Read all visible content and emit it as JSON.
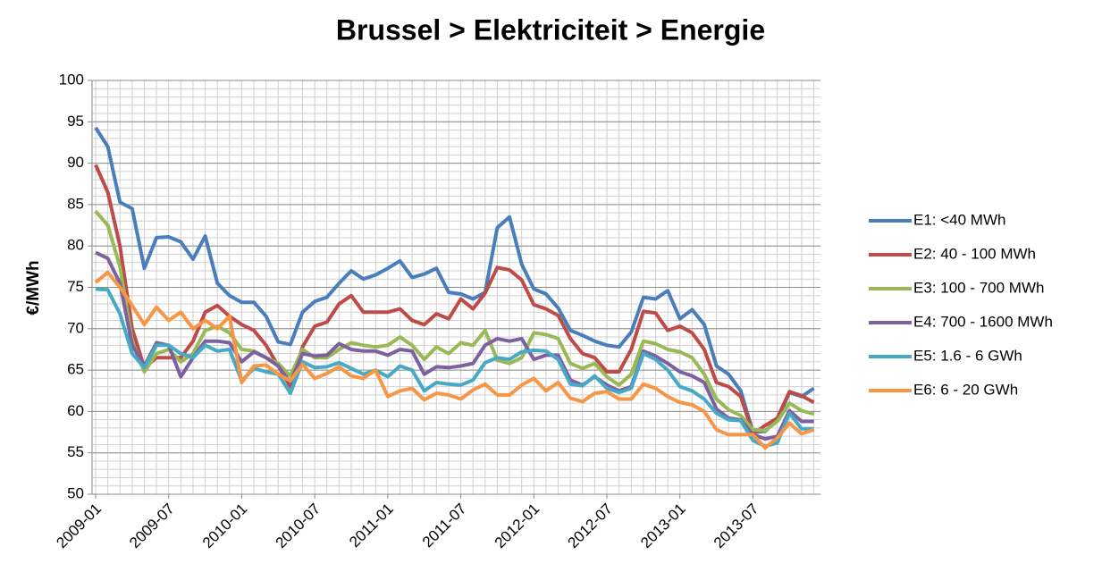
{
  "chart_data": {
    "type": "line",
    "title": "Brussel > Elektriciteit > Energie",
    "y_label": "€/MWh",
    "categories": [
      "2009-01",
      null,
      null,
      null,
      null,
      null,
      "2009-07",
      null,
      null,
      null,
      null,
      null,
      "2010-01",
      null,
      null,
      null,
      null,
      null,
      "2010-07",
      null,
      null,
      null,
      null,
      null,
      "2011-01",
      null,
      null,
      null,
      null,
      null,
      "2011-07",
      null,
      null,
      null,
      null,
      null,
      "2012-01",
      null,
      null,
      null,
      null,
      null,
      "2012-07",
      null,
      null,
      null,
      null,
      null,
      "2013-01",
      null,
      null,
      null,
      null,
      null,
      "2013-07",
      null,
      null,
      null,
      null,
      null
    ],
    "ylim": [
      50,
      100
    ],
    "yticks": [
      50,
      55,
      60,
      65,
      70,
      75,
      80,
      85,
      90,
      95,
      100
    ],
    "grid": true,
    "minor_grid": true,
    "legend": "right",
    "series": [
      {
        "name": "E1: <40 MWh",
        "color": "#4a7ebb",
        "values": [
          94.3,
          92,
          85.3,
          84.5,
          77.3,
          81,
          81.1,
          80.5,
          78.4,
          81.2,
          75.5,
          74,
          73.2,
          73.2,
          71.5,
          68.4,
          68.1,
          72,
          73.3,
          73.8,
          75.5,
          77,
          76,
          76.5,
          77.3,
          78.2,
          76.2,
          76.6,
          77.3,
          74.4,
          74.2,
          73.6,
          74.4,
          82.2,
          83.5,
          77.8,
          74.8,
          74.2,
          72.5,
          69.8,
          69.2,
          68.5,
          68,
          67.8,
          69.6,
          73.8,
          73.6,
          74.6,
          71.2,
          72.3,
          70.5,
          65.5,
          64.5,
          62.5,
          57.5,
          57.6,
          59,
          62.3,
          61.8,
          62.8
        ]
      },
      {
        "name": "E2: 40 - 100 MWh",
        "color": "#be4b48",
        "values": [
          89.8,
          86.5,
          80,
          70,
          65.3,
          66.5,
          66.5,
          66.5,
          68.5,
          72,
          72.8,
          71.5,
          70.5,
          69.8,
          68,
          65.5,
          63,
          67.8,
          70.3,
          70.8,
          73,
          74,
          72,
          72,
          72,
          72.4,
          71,
          70.5,
          71.8,
          71.2,
          73.6,
          72.4,
          74.3,
          77.4,
          77.1,
          75.9,
          72.9,
          72.4,
          71.6,
          68.8,
          67,
          66.5,
          64.8,
          64.8,
          67.5,
          72.1,
          71.9,
          69.8,
          70.3,
          69.5,
          67.5,
          63.5,
          63,
          61.8,
          57.3,
          58.3,
          59.2,
          62.4,
          61.9,
          61.1
        ]
      },
      {
        "name": "E3: 100 - 700 MWh",
        "color": "#98b954",
        "values": [
          84.2,
          82.5,
          77.5,
          68.5,
          64.8,
          67,
          67.5,
          66,
          67,
          69.8,
          70.3,
          69.5,
          67.5,
          67.3,
          66.5,
          65.8,
          64.3,
          67.5,
          66.5,
          66.5,
          67.5,
          68.3,
          68,
          67.8,
          68,
          69,
          68,
          66.3,
          67.8,
          67,
          68.3,
          68,
          69.8,
          66.2,
          65.8,
          66.5,
          69.5,
          69.3,
          68.8,
          65.8,
          65.2,
          65.8,
          64.2,
          63.2,
          64.5,
          68.5,
          68.2,
          67.5,
          67.2,
          66.5,
          64.5,
          61.5,
          60.2,
          59.5,
          57.8,
          57.7,
          58.8,
          61,
          60.1,
          59.7
        ]
      },
      {
        "name": "E4: 700 - 1600 MWh",
        "color": "#7d60a0",
        "values": [
          79.2,
          78.5,
          75.5,
          68,
          65.5,
          68.3,
          68,
          64.2,
          66.5,
          68.5,
          68.5,
          68.3,
          66,
          67.2,
          66.5,
          65.5,
          63.5,
          67,
          66.7,
          66.8,
          68.2,
          67.5,
          67.3,
          67.3,
          66.8,
          67.5,
          67.3,
          64.5,
          65.4,
          65.3,
          65.5,
          65.8,
          68,
          68.8,
          68.5,
          68.8,
          66.3,
          66.8,
          66.8,
          63.8,
          63.2,
          64.2,
          63.2,
          62.5,
          63,
          67.3,
          66.7,
          65.8,
          64.8,
          64.3,
          63.5,
          60.3,
          59.2,
          59,
          57.2,
          56.7,
          57,
          60.1,
          58.8,
          58.8
        ]
      },
      {
        "name": "E5: 1.6 - 6 GWh",
        "color": "#46aac5",
        "values": [
          74.8,
          74.7,
          71.8,
          67,
          65.3,
          68,
          68,
          67,
          66.5,
          68,
          67.3,
          67.5,
          63.7,
          65.2,
          64.8,
          64.5,
          62.2,
          66,
          65.3,
          65.4,
          65.9,
          65.2,
          64.5,
          65,
          64.2,
          65.5,
          65,
          62.5,
          63.5,
          63.3,
          63.2,
          63.8,
          65.9,
          66.5,
          66.3,
          67.2,
          67.4,
          67.3,
          66.3,
          63.3,
          63.1,
          64.3,
          62.8,
          62.3,
          62.8,
          67,
          66.3,
          65,
          63,
          62.5,
          61.5,
          59.8,
          59,
          58.9,
          56.5,
          55.8,
          56.2,
          59.8,
          57.9,
          57.9
        ]
      },
      {
        "name": "E6: 6 - 20 GWh",
        "color": "#f79646",
        "values": [
          75.6,
          76.8,
          75,
          72.8,
          70.5,
          72.6,
          71,
          72,
          70,
          71,
          70,
          71.5,
          63.5,
          65.5,
          65.6,
          64.5,
          63.7,
          65.7,
          64,
          64.6,
          65.4,
          64.3,
          64,
          65,
          61.8,
          62.5,
          62.8,
          61.4,
          62.2,
          62,
          61.5,
          62.6,
          63.3,
          62,
          62,
          63.2,
          64,
          62.5,
          63.5,
          61.6,
          61.2,
          62.2,
          62.4,
          61.5,
          61.5,
          63.3,
          62.8,
          61.8,
          61.1,
          60.8,
          60,
          57.8,
          57.2,
          57.2,
          57.2,
          55.6,
          56.8,
          58.6,
          57.3,
          57.8
        ]
      }
    ]
  }
}
